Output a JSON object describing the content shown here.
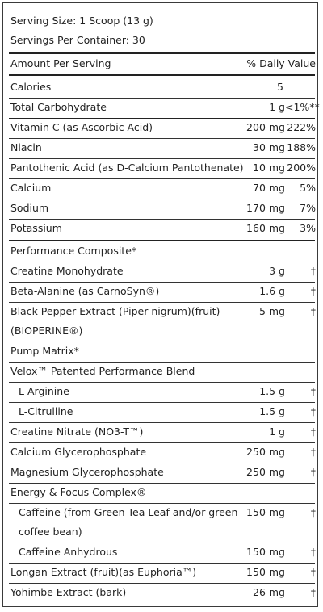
{
  "serving": {
    "size_label": "Serving Size: 1 Scoop (13 g)",
    "per_container_label": "Servings Per Container: 30"
  },
  "columns": {
    "amount_header": "Amount Per Serving",
    "dv_header": "% Daily Value"
  },
  "rows": [
    {
      "label": "Calories",
      "amount": "5",
      "dv": ""
    },
    {
      "label": "Total Carbohydrate",
      "amount": "1 g",
      "dv": "<1%**"
    },
    {
      "label": "Vitamin C (as Ascorbic Acid)",
      "amount": "200 mg",
      "dv": "222%"
    },
    {
      "label": "Niacin",
      "amount": "30 mg",
      "dv": "188%"
    },
    {
      "label": "Pantothenic Acid (as D-Calcium Pantothenate)",
      "amount": "10 mg",
      "dv": "200%"
    },
    {
      "label": "Calcium",
      "amount": "70 mg",
      "dv": "5%"
    },
    {
      "label": "Sodium",
      "amount": "170 mg",
      "dv": "7%"
    },
    {
      "label": "Potassium",
      "amount": "160 mg",
      "dv": "3%"
    },
    {
      "label": "Performance Composite*",
      "amount": "",
      "dv": ""
    },
    {
      "label": "Creatine Monohydrate",
      "amount": "3 g",
      "dv": "†"
    },
    {
      "label": "Beta-Alanine (as CarnoSyn®)",
      "amount": "1.6 g",
      "dv": "†"
    },
    {
      "label": "Black Pepper Extract (Piper nigrum)(fruit)",
      "label2": "(BIOPERINE®)",
      "amount": "5 mg",
      "dv": "†"
    },
    {
      "label": "Pump Matrix*",
      "amount": "",
      "dv": ""
    },
    {
      "label": "Velox™ Patented Performance Blend",
      "amount": "",
      "dv": ""
    },
    {
      "label": "L-Arginine",
      "amount": "1.5 g",
      "dv": "†"
    },
    {
      "label": "L-Citrulline",
      "amount": "1.5 g",
      "dv": "†"
    },
    {
      "label": "Creatine Nitrate (NO3-T™)",
      "amount": "1 g",
      "dv": "†"
    },
    {
      "label": "Calcium Glycerophosphate",
      "amount": "250 mg",
      "dv": "†"
    },
    {
      "label": "Magnesium Glycerophosphate",
      "amount": "250 mg",
      "dv": "†"
    },
    {
      "label": "Energy & Focus Complex®",
      "amount": "",
      "dv": ""
    },
    {
      "label": "Caffeine (from Green Tea Leaf and/or green",
      "label2": "coffee bean)",
      "amount": "150 mg",
      "dv": "†"
    },
    {
      "label": "Caffeine Anhydrous",
      "amount": "150 mg",
      "dv": "†"
    },
    {
      "label": "Longan Extract (fruit)(as Euphoria™)",
      "amount": "150 mg",
      "dv": "†"
    },
    {
      "label": "Yohimbe Extract (bark)",
      "amount": "26 mg",
      "dv": "†"
    }
  ]
}
